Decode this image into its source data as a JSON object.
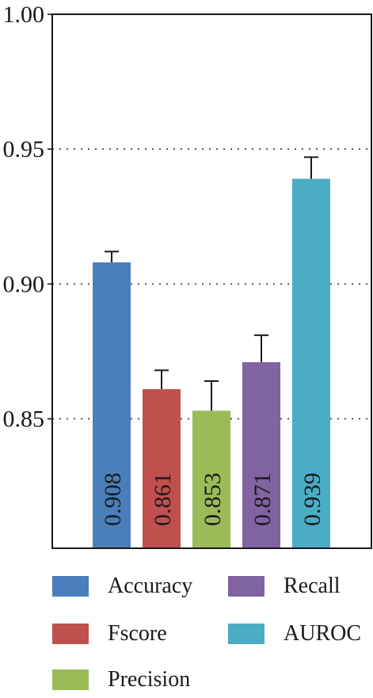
{
  "chart_data": {
    "type": "bar",
    "categories": [
      "Accuracy",
      "Fscore",
      "Precision",
      "Recall",
      "AUROC"
    ],
    "values": [
      0.908,
      0.861,
      0.853,
      0.871,
      0.939
    ],
    "errors": [
      0.004,
      0.007,
      0.011,
      0.01,
      0.008
    ],
    "data_labels": [
      "0.908",
      "0.861",
      "0.853",
      "0.871",
      "0.939"
    ],
    "colors": [
      "#4a7ebb",
      "#c0504d",
      "#9bbb59",
      "#8064a2",
      "#4bacc6"
    ],
    "ylim": [
      0.802,
      1.0
    ],
    "yticks": [
      0.85,
      0.9,
      0.95,
      1.0
    ],
    "ytick_labels": [
      "0.85",
      "0.90",
      "0.95",
      "1.00"
    ],
    "grid": "horizontal dotted",
    "legend_position": "bottom",
    "title": "",
    "xlabel": "",
    "ylabel": ""
  },
  "legend": {
    "items": [
      {
        "label": "Accuracy",
        "color": "#4a7ebb"
      },
      {
        "label": "Recall",
        "color": "#8064a2"
      },
      {
        "label": "Fscore",
        "color": "#c0504d"
      },
      {
        "label": "AUROC",
        "color": "#4bacc6"
      },
      {
        "label": "Precision",
        "color": "#9bbb59"
      }
    ]
  }
}
